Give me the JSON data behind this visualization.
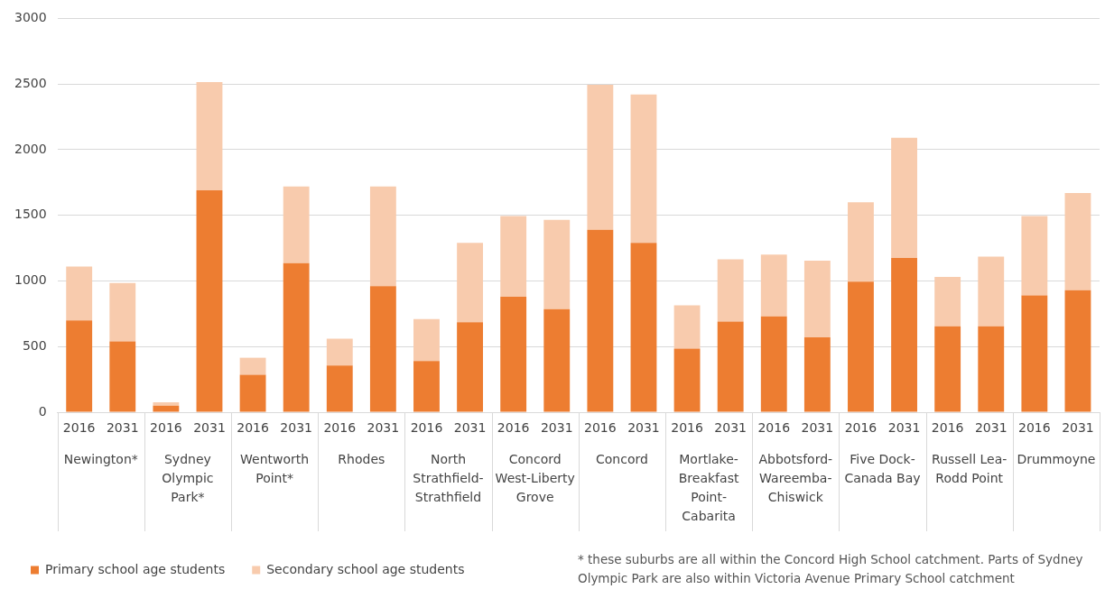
{
  "chart_data": {
    "type": "bar",
    "stacked": true,
    "categories": [
      "2016",
      "2031",
      "2016",
      "2031",
      "2016",
      "2031",
      "2016",
      "2031",
      "2016",
      "2031",
      "2016",
      "2031",
      "2016",
      "2031",
      "2016",
      "2031",
      "2016",
      "2031",
      "2016",
      "2031",
      "2016",
      "2031",
      "2016",
      "2031"
    ],
    "series": [
      {
        "name": "Primary school age students",
        "color": "#ed7d31",
        "values": [
          700,
          540,
          50,
          1690,
          285,
          1135,
          355,
          960,
          390,
          685,
          880,
          785,
          1390,
          1290,
          485,
          690,
          730,
          570,
          995,
          1175,
          655,
          655,
          890,
          930
        ]
      },
      {
        "name": "Secondary school age students",
        "color": "#f8cbad",
        "values": [
          410,
          445,
          25,
          825,
          130,
          585,
          205,
          760,
          320,
          605,
          615,
          680,
          1105,
          1130,
          330,
          475,
          470,
          585,
          605,
          915,
          375,
          530,
          605,
          740
        ]
      }
    ],
    "ylim": [
      0,
      3000
    ],
    "yticks": [
      0,
      500,
      1000,
      1500,
      2000,
      2500,
      3000
    ],
    "grid": "y",
    "legend": "bottom left",
    "annotations": [
      {
        "text": "Newington*"
      },
      {
        "text": "Sydney Olympic Park*"
      },
      {
        "text": "Wentworth Point*"
      },
      {
        "text": "Rhodes"
      },
      {
        "text": "North Strathfield-Strathfield"
      },
      {
        "text": "Concord West-Liberty Grove"
      },
      {
        "text": "Concord"
      },
      {
        "text": "Mortlake-Breakfast Point-Cabarita"
      },
      {
        "text": "Abbotsford-Wareemba-Chiswick"
      },
      {
        "text": "Five Dock-Canada Bay"
      },
      {
        "text": "Russell Lea-Rodd Point"
      },
      {
        "text": "Drummoyne"
      },
      "* these suburbs are all within the Concord High School catchment. Parts of Sydney Olympic Park are also within Victoria Avenue Primary School catchment"
    ]
  }
}
